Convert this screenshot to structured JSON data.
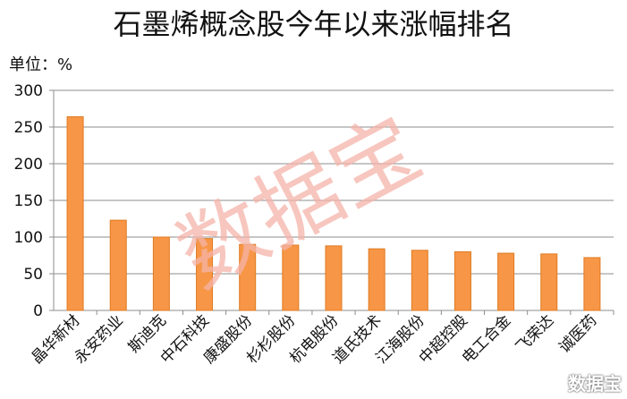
{
  "chart_data": {
    "type": "bar",
    "title": "石墨烯概念股今年以来涨幅排名",
    "unit_label": "单位：%",
    "categories": [
      "晶华新材",
      "永安药业",
      "斯迪克",
      "中石科技",
      "康盛股份",
      "杉杉股份",
      "杭电股份",
      "道氏技术",
      "江海股份",
      "中超控股",
      "电工合金",
      "飞荣达",
      "诚医药"
    ],
    "values": [
      264,
      123,
      100,
      98,
      90,
      89,
      88,
      84,
      82,
      80,
      78,
      77,
      72
    ],
    "ylim": [
      0,
      300
    ],
    "yticks": [
      0,
      50,
      100,
      150,
      200,
      250,
      300
    ],
    "grid": true,
    "bar_color": "#f79646",
    "watermark": "数据宝",
    "logo_text": "数据宝"
  }
}
